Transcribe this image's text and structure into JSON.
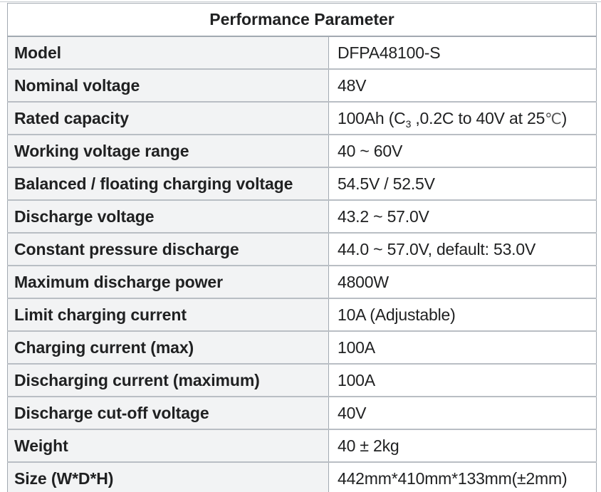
{
  "table": {
    "title": "Performance Parameter",
    "rows": [
      {
        "label": "Model",
        "value": "DFPA48100-S"
      },
      {
        "label": "Nominal voltage",
        "value": "48V"
      },
      {
        "label": "Rated capacity",
        "value_prefix": "100Ah (C",
        "value_sub": "3",
        "value_mid": " ,0.2C to 40V at 25",
        "value_unit": "℃",
        "value_suffix": ")"
      },
      {
        "label": "Working voltage range",
        "value": "40 ~ 60V"
      },
      {
        "label": "Balanced / floating charging voltage",
        "value": "54.5V / 52.5V"
      },
      {
        "label": "Discharge voltage",
        "value": "43.2 ~ 57.0V"
      },
      {
        "label": "Constant pressure discharge",
        "value": "44.0 ~ 57.0V, default: 53.0V"
      },
      {
        "label": "Maximum discharge power",
        "value": "4800W"
      },
      {
        "label": "Limit charging current",
        "value": "10A (Adjustable)"
      },
      {
        "label": "Charging current (max)",
        "value": "100A"
      },
      {
        "label": "Discharging current (maximum)",
        "value": "100A"
      },
      {
        "label": "Discharge cut-off voltage",
        "value": "40V"
      },
      {
        "label": "Weight",
        "value": "40 ± 2kg"
      },
      {
        "label": "Size (W*D*H)",
        "value": "442mm*410mm*133mm(±2mm)"
      }
    ]
  },
  "colors": {
    "label_bg": "#f2f3f4",
    "value_bg": "#ffffff",
    "border": "#a2a9b1",
    "text": "#202122"
  }
}
